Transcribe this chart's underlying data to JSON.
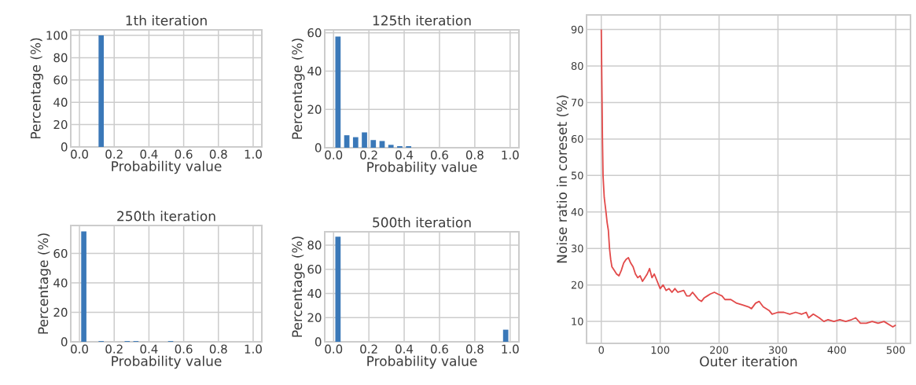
{
  "chart_data": [
    {
      "type": "histogram",
      "title": "1th iteration",
      "xlabel": "Probability value",
      "ylabel": "Percentage (%)",
      "bins": [
        0,
        0.05,
        0.1,
        0.15,
        0.2,
        0.25,
        0.3,
        0.35,
        0.4,
        0.45,
        0.5,
        0.55,
        0.6,
        0.65,
        0.7,
        0.75,
        0.8,
        0.85,
        0.9,
        0.95,
        1.0
      ],
      "values": [
        0,
        0,
        100,
        0,
        0,
        0,
        0,
        0,
        0,
        0,
        0,
        0,
        0,
        0,
        0,
        0,
        0,
        0,
        0,
        0
      ],
      "color": "#3a78b8",
      "xlim": [
        -0.05,
        1.05
      ],
      "ylim": [
        0,
        105
      ],
      "xticks": [
        {
          "value": 0,
          "label": "0.0"
        },
        {
          "value": 0.2,
          "label": "0.2"
        },
        {
          "value": 0.4,
          "label": "0.4"
        },
        {
          "value": 0.6,
          "label": "0.6"
        },
        {
          "value": 0.8,
          "label": "0.8"
        },
        {
          "value": 1,
          "label": "1.0"
        }
      ],
      "yticks": [
        0,
        20,
        40,
        60,
        80,
        100
      ],
      "grid": true
    },
    {
      "type": "histogram",
      "title": "125th iteration",
      "xlabel": "Probability value",
      "ylabel": "Percentage (%)",
      "bins": [
        0,
        0.05,
        0.1,
        0.15,
        0.2,
        0.25,
        0.3,
        0.35,
        0.4,
        0.45,
        0.5,
        0.55,
        0.6,
        0.65,
        0.7,
        0.75,
        0.8,
        0.85,
        0.9,
        0.95,
        1.0
      ],
      "values": [
        58,
        6.5,
        5.5,
        8,
        4,
        3.5,
        1.5,
        0.8,
        0.8,
        0,
        0,
        0,
        0,
        0,
        0,
        0,
        0,
        0,
        0,
        0
      ],
      "color": "#3a78b8",
      "xlim": [
        -0.05,
        1.05
      ],
      "ylim": [
        0,
        61.5
      ],
      "xticks": [
        {
          "value": 0,
          "label": "0.0"
        },
        {
          "value": 0.2,
          "label": "0.2"
        },
        {
          "value": 0.4,
          "label": "0.4"
        },
        {
          "value": 0.6,
          "label": "0.6"
        },
        {
          "value": 0.8,
          "label": "0.8"
        },
        {
          "value": 1,
          "label": "1.0"
        }
      ],
      "yticks": [
        0,
        20,
        40,
        60
      ],
      "grid": true
    },
    {
      "type": "histogram",
      "title": "250th iteration",
      "xlabel": "Probability value",
      "ylabel": "Percentage (%)",
      "bins": [
        0,
        0.05,
        0.1,
        0.15,
        0.2,
        0.25,
        0.3,
        0.35,
        0.4,
        0.45,
        0.5,
        0.55,
        0.6,
        0.65,
        0.7,
        0.75,
        0.8,
        0.85,
        0.9,
        0.95,
        1.0
      ],
      "values": [
        75,
        0,
        0.5,
        0,
        0,
        0.5,
        0.5,
        0,
        0,
        0,
        0.5,
        0,
        0,
        0,
        0,
        0,
        0,
        0,
        0,
        0
      ],
      "color": "#3a78b8",
      "xlim": [
        -0.05,
        1.05
      ],
      "ylim": [
        0,
        79
      ],
      "xticks": [
        {
          "value": 0,
          "label": "0.0"
        },
        {
          "value": 0.2,
          "label": "0.2"
        },
        {
          "value": 0.4,
          "label": "0.4"
        },
        {
          "value": 0.6,
          "label": "0.6"
        },
        {
          "value": 0.8,
          "label": "0.8"
        },
        {
          "value": 1,
          "label": "1.0"
        }
      ],
      "yticks": [
        0,
        20,
        40,
        60
      ],
      "grid": true
    },
    {
      "type": "histogram",
      "title": "500th iteration",
      "xlabel": "Probability value",
      "ylabel": "Percentage (%)",
      "bins": [
        0,
        0.05,
        0.1,
        0.15,
        0.2,
        0.25,
        0.3,
        0.35,
        0.4,
        0.45,
        0.5,
        0.55,
        0.6,
        0.65,
        0.7,
        0.75,
        0.8,
        0.85,
        0.9,
        0.95,
        1.0
      ],
      "values": [
        87,
        0,
        0,
        0,
        0,
        0,
        0,
        0,
        0,
        0,
        0,
        0,
        0,
        0,
        0,
        0,
        0,
        0,
        0,
        10
      ],
      "color": "#3a78b8",
      "xlim": [
        -0.05,
        1.05
      ],
      "ylim": [
        0,
        91
      ],
      "xticks": [
        {
          "value": 0,
          "label": "0.0"
        },
        {
          "value": 0.2,
          "label": "0.2"
        },
        {
          "value": 0.4,
          "label": "0.4"
        },
        {
          "value": 0.6,
          "label": "0.6"
        },
        {
          "value": 0.8,
          "label": "0.8"
        },
        {
          "value": 1,
          "label": "1.0"
        }
      ],
      "yticks": [
        0,
        20,
        40,
        60,
        80
      ],
      "grid": true
    },
    {
      "type": "line",
      "xlabel": "Outer iteration",
      "ylabel": "Noise ratio in coreset (%)",
      "x": [
        0,
        1,
        2,
        3,
        5,
        8,
        10,
        12,
        14,
        16,
        18,
        22,
        26,
        30,
        34,
        38,
        42,
        46,
        50,
        54,
        58,
        62,
        66,
        70,
        74,
        78,
        82,
        86,
        90,
        95,
        100,
        105,
        110,
        115,
        120,
        125,
        130,
        140,
        145,
        150,
        155,
        160,
        165,
        170,
        175,
        180,
        185,
        192,
        198,
        205,
        210,
        220,
        230,
        240,
        250,
        255,
        262,
        268,
        275,
        285,
        290,
        300,
        310,
        320,
        330,
        340,
        348,
        352,
        360,
        370,
        378,
        385,
        395,
        405,
        415,
        425,
        432,
        440,
        450,
        460,
        470,
        480,
        490,
        495,
        500
      ],
      "values": [
        90,
        75,
        60,
        50,
        44,
        40,
        37,
        35,
        30,
        27,
        25,
        24,
        23,
        22.5,
        24,
        26,
        27,
        27.5,
        26,
        25,
        23,
        22,
        22.5,
        21,
        22,
        23,
        24.5,
        22,
        23,
        21,
        19,
        20,
        18.5,
        19,
        18,
        19,
        18,
        18.5,
        17,
        17,
        18,
        17,
        16,
        15.5,
        16.5,
        17,
        17.5,
        18,
        17.5,
        17,
        16,
        16,
        15,
        14.5,
        14,
        13.5,
        15,
        15.5,
        14,
        13,
        12,
        12.5,
        12.5,
        12,
        12.5,
        12,
        12.5,
        11,
        12,
        11,
        10,
        10.5,
        10,
        10.5,
        10,
        10.5,
        11,
        9.5,
        9.5,
        10,
        9.5,
        10,
        9,
        8.5,
        9
      ],
      "color": "#e24a4a",
      "xlim": [
        -25,
        525
      ],
      "ylim": [
        4,
        94
      ],
      "xticks": [
        0,
        100,
        200,
        300,
        400,
        500
      ],
      "yticks": [
        10,
        20,
        30,
        40,
        50,
        60,
        70,
        80,
        90
      ],
      "grid": true
    }
  ]
}
